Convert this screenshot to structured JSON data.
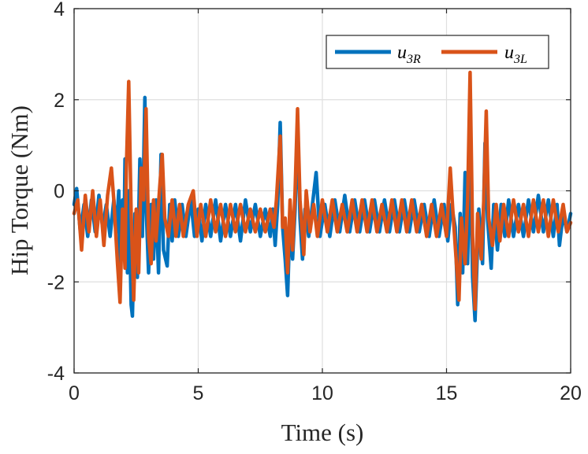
{
  "chart_data": {
    "type": "line",
    "xlabel": "Time (s)",
    "ylabel": "Hip Torque (Nm)",
    "xlim": [
      0,
      20
    ],
    "ylim": [
      -4,
      4
    ],
    "x_ticks": [
      "0",
      "5",
      "10",
      "15",
      "20"
    ],
    "y_ticks": [
      "-4",
      "-2",
      "0",
      "2",
      "4"
    ],
    "grid": true,
    "legend_position": "top-right",
    "legend": [
      {
        "base": "u",
        "sub": "3R"
      },
      {
        "base": "u",
        "sub": "3L"
      }
    ],
    "series": [
      {
        "name": "u3R",
        "color": "#0072BD",
        "points": [
          [
            0.0,
            -0.3
          ],
          [
            0.1,
            0.05
          ],
          [
            0.25,
            -0.9
          ],
          [
            0.4,
            -0.3
          ],
          [
            0.55,
            -1.0
          ],
          [
            0.7,
            -0.2
          ],
          [
            0.85,
            -0.9
          ],
          [
            1.0,
            -0.1
          ],
          [
            1.15,
            -0.8
          ],
          [
            1.3,
            -0.3
          ],
          [
            1.45,
            -1.0
          ],
          [
            1.6,
            -0.2
          ],
          [
            1.7,
            -0.9
          ],
          [
            1.8,
            0.0
          ],
          [
            1.85,
            -2.2
          ],
          [
            1.95,
            -0.2
          ],
          [
            2.0,
            -1.5
          ],
          [
            2.05,
            0.7
          ],
          [
            2.15,
            -1.8
          ],
          [
            2.2,
            0.0
          ],
          [
            2.3,
            -2.5
          ],
          [
            2.35,
            -2.75
          ],
          [
            2.45,
            -0.5
          ],
          [
            2.55,
            -1.9
          ],
          [
            2.65,
            0.7
          ],
          [
            2.75,
            -1.0
          ],
          [
            2.85,
            2.05
          ],
          [
            2.9,
            -0.3
          ],
          [
            3.0,
            -1.8
          ],
          [
            3.1,
            -0.3
          ],
          [
            3.2,
            -1.5
          ],
          [
            3.3,
            -0.2
          ],
          [
            3.4,
            -1.8
          ],
          [
            3.5,
            0.8
          ],
          [
            3.6,
            -1.3
          ],
          [
            3.75,
            -1.65
          ],
          [
            3.85,
            -0.3
          ],
          [
            3.95,
            -1.1
          ],
          [
            4.05,
            -0.2
          ],
          [
            4.2,
            -1.0
          ],
          [
            4.35,
            -0.3
          ],
          [
            4.5,
            -1.0
          ],
          [
            4.7,
            -0.2
          ],
          [
            4.85,
            -1.0
          ],
          [
            5.0,
            -0.4
          ],
          [
            5.15,
            -1.1
          ],
          [
            5.3,
            -0.3
          ],
          [
            5.5,
            -1.0
          ],
          [
            5.7,
            -0.2
          ],
          [
            5.9,
            -1.1
          ],
          [
            6.1,
            -0.3
          ],
          [
            6.3,
            -1.0
          ],
          [
            6.5,
            -0.3
          ],
          [
            6.7,
            -1.1
          ],
          [
            6.9,
            -0.2
          ],
          [
            7.1,
            -0.9
          ],
          [
            7.3,
            -0.3
          ],
          [
            7.5,
            -1.0
          ],
          [
            7.7,
            -0.4
          ],
          [
            7.9,
            -1.0
          ],
          [
            8.0,
            -0.4
          ],
          [
            8.1,
            -1.2
          ],
          [
            8.2,
            -0.3
          ],
          [
            8.3,
            1.5
          ],
          [
            8.4,
            -0.8
          ],
          [
            8.5,
            -1.5
          ],
          [
            8.6,
            -2.3
          ],
          [
            8.7,
            -0.6
          ],
          [
            8.8,
            -1.5
          ],
          [
            8.9,
            -0.4
          ],
          [
            9.0,
            1.5
          ],
          [
            9.1,
            -0.6
          ],
          [
            9.2,
            -1.5
          ],
          [
            9.3,
            -0.4
          ],
          [
            9.45,
            -1.0
          ],
          [
            9.6,
            -0.3
          ],
          [
            9.75,
            0.4
          ],
          [
            9.9,
            -1.0
          ],
          [
            10.1,
            -0.3
          ],
          [
            10.3,
            -1.0
          ],
          [
            10.5,
            -0.2
          ],
          [
            10.7,
            -0.9
          ],
          [
            10.9,
            -0.1
          ],
          [
            11.1,
            -0.9
          ],
          [
            11.3,
            -0.2
          ],
          [
            11.5,
            -0.9
          ],
          [
            11.7,
            -0.2
          ],
          [
            11.9,
            -0.9
          ],
          [
            12.1,
            -0.2
          ],
          [
            12.3,
            -0.9
          ],
          [
            12.5,
            -0.2
          ],
          [
            12.7,
            -0.9
          ],
          [
            12.9,
            -0.2
          ],
          [
            13.1,
            -0.9
          ],
          [
            13.3,
            -0.2
          ],
          [
            13.5,
            -0.9
          ],
          [
            13.7,
            -0.2
          ],
          [
            13.9,
            -0.9
          ],
          [
            14.1,
            -0.3
          ],
          [
            14.3,
            -1.0
          ],
          [
            14.5,
            -0.2
          ],
          [
            14.7,
            -1.0
          ],
          [
            14.9,
            -0.3
          ],
          [
            15.05,
            -1.1
          ],
          [
            15.2,
            -0.3
          ],
          [
            15.35,
            -0.8
          ],
          [
            15.45,
            -2.5
          ],
          [
            15.55,
            -0.5
          ],
          [
            15.65,
            -1.8
          ],
          [
            15.75,
            0.4
          ],
          [
            15.85,
            -1.6
          ],
          [
            15.95,
            1.0
          ],
          [
            16.05,
            -1.9
          ],
          [
            16.15,
            -2.85
          ],
          [
            16.3,
            -0.4
          ],
          [
            16.45,
            -1.6
          ],
          [
            16.55,
            1.05
          ],
          [
            16.65,
            -0.6
          ],
          [
            16.8,
            -1.7
          ],
          [
            16.9,
            -0.3
          ],
          [
            17.05,
            -1.3
          ],
          [
            17.2,
            -0.3
          ],
          [
            17.35,
            -1.0
          ],
          [
            17.5,
            -0.2
          ],
          [
            17.7,
            -1.0
          ],
          [
            17.9,
            -0.3
          ],
          [
            18.1,
            -1.0
          ],
          [
            18.3,
            -0.2
          ],
          [
            18.5,
            -0.9
          ],
          [
            18.7,
            -0.1
          ],
          [
            18.9,
            -0.9
          ],
          [
            19.1,
            -0.2
          ],
          [
            19.3,
            -1.0
          ],
          [
            19.45,
            -0.3
          ],
          [
            19.55,
            -1.2
          ],
          [
            19.7,
            -0.5
          ],
          [
            19.85,
            -0.9
          ],
          [
            20.0,
            -0.5
          ]
        ]
      },
      {
        "name": "u3L",
        "color": "#D95319",
        "points": [
          [
            0.0,
            -0.5
          ],
          [
            0.15,
            -0.2
          ],
          [
            0.3,
            -1.3
          ],
          [
            0.45,
            -0.1
          ],
          [
            0.6,
            -0.9
          ],
          [
            0.75,
            0.0
          ],
          [
            0.9,
            -1.0
          ],
          [
            1.05,
            -0.2
          ],
          [
            1.2,
            -1.2
          ],
          [
            1.35,
            -0.1
          ],
          [
            1.5,
            0.5
          ],
          [
            1.6,
            -0.2
          ],
          [
            1.75,
            -1.6
          ],
          [
            1.85,
            -2.45
          ],
          [
            1.95,
            -0.4
          ],
          [
            2.05,
            -1.7
          ],
          [
            2.1,
            0.4
          ],
          [
            2.2,
            2.4
          ],
          [
            2.3,
            -0.5
          ],
          [
            2.4,
            -2.4
          ],
          [
            2.5,
            -0.4
          ],
          [
            2.6,
            -1.8
          ],
          [
            2.7,
            0.5
          ],
          [
            2.8,
            -0.2
          ],
          [
            2.9,
            1.8
          ],
          [
            3.0,
            -1.0
          ],
          [
            3.1,
            -1.6
          ],
          [
            3.2,
            -0.2
          ],
          [
            3.3,
            -1.1
          ],
          [
            3.45,
            0.1
          ],
          [
            3.55,
            0.8
          ],
          [
            3.65,
            -0.6
          ],
          [
            3.8,
            -1.0
          ],
          [
            3.95,
            -0.2
          ],
          [
            4.1,
            -1.0
          ],
          [
            4.25,
            -0.3
          ],
          [
            4.4,
            -1.0
          ],
          [
            4.6,
            -0.3
          ],
          [
            4.8,
            0.0
          ],
          [
            4.95,
            -1.0
          ],
          [
            5.1,
            -0.3
          ],
          [
            5.3,
            -1.0
          ],
          [
            5.5,
            -0.2
          ],
          [
            5.7,
            -0.9
          ],
          [
            5.9,
            -0.3
          ],
          [
            6.1,
            -1.0
          ],
          [
            6.3,
            -0.3
          ],
          [
            6.5,
            -0.9
          ],
          [
            6.7,
            -0.3
          ],
          [
            6.9,
            -0.9
          ],
          [
            7.1,
            -0.4
          ],
          [
            7.3,
            -0.9
          ],
          [
            7.5,
            -0.4
          ],
          [
            7.7,
            -0.9
          ],
          [
            7.9,
            -0.4
          ],
          [
            8.05,
            -0.8
          ],
          [
            8.15,
            -0.2
          ],
          [
            8.3,
            1.2
          ],
          [
            8.4,
            -0.8
          ],
          [
            8.5,
            -0.6
          ],
          [
            8.6,
            -1.8
          ],
          [
            8.7,
            -0.2
          ],
          [
            8.8,
            -1.3
          ],
          [
            8.9,
            0.0
          ],
          [
            9.0,
            1.8
          ],
          [
            9.1,
            -0.2
          ],
          [
            9.25,
            -1.4
          ],
          [
            9.35,
            0.0
          ],
          [
            9.5,
            -0.9
          ],
          [
            9.65,
            -0.3
          ],
          [
            9.8,
            -1.0
          ],
          [
            10.0,
            -0.2
          ],
          [
            10.2,
            -0.9
          ],
          [
            10.4,
            -0.2
          ],
          [
            10.6,
            -0.9
          ],
          [
            10.8,
            -0.3
          ],
          [
            11.0,
            -0.9
          ],
          [
            11.2,
            -0.2
          ],
          [
            11.4,
            -0.9
          ],
          [
            11.6,
            -0.2
          ],
          [
            11.8,
            -0.9
          ],
          [
            12.0,
            -0.2
          ],
          [
            12.2,
            -0.9
          ],
          [
            12.4,
            -0.3
          ],
          [
            12.6,
            -0.9
          ],
          [
            12.8,
            -0.2
          ],
          [
            13.0,
            -0.9
          ],
          [
            13.2,
            -0.2
          ],
          [
            13.4,
            -0.9
          ],
          [
            13.6,
            -0.2
          ],
          [
            13.8,
            -0.9
          ],
          [
            14.0,
            -0.3
          ],
          [
            14.2,
            -1.0
          ],
          [
            14.4,
            -0.3
          ],
          [
            14.6,
            -1.0
          ],
          [
            14.8,
            -0.3
          ],
          [
            15.0,
            -1.0
          ],
          [
            15.15,
            0.5
          ],
          [
            15.25,
            -0.4
          ],
          [
            15.35,
            -1.2
          ],
          [
            15.5,
            -2.4
          ],
          [
            15.6,
            -0.6
          ],
          [
            15.75,
            -1.6
          ],
          [
            15.85,
            -0.2
          ],
          [
            15.95,
            2.6
          ],
          [
            16.05,
            -1.0
          ],
          [
            16.15,
            -2.6
          ],
          [
            16.25,
            -0.5
          ],
          [
            16.4,
            -1.5
          ],
          [
            16.5,
            -0.2
          ],
          [
            16.6,
            1.75
          ],
          [
            16.7,
            -0.6
          ],
          [
            16.85,
            -1.2
          ],
          [
            17.0,
            -0.3
          ],
          [
            17.15,
            -1.1
          ],
          [
            17.3,
            -0.3
          ],
          [
            17.5,
            -1.0
          ],
          [
            17.7,
            -0.2
          ],
          [
            17.9,
            -0.9
          ],
          [
            18.1,
            -0.3
          ],
          [
            18.3,
            -1.0
          ],
          [
            18.5,
            -0.2
          ],
          [
            18.7,
            -0.9
          ],
          [
            18.9,
            -0.2
          ],
          [
            19.1,
            -1.0
          ],
          [
            19.3,
            -0.2
          ],
          [
            19.5,
            -0.9
          ],
          [
            19.7,
            -0.3
          ],
          [
            19.85,
            -0.9
          ],
          [
            20.0,
            -0.7
          ]
        ]
      }
    ]
  }
}
